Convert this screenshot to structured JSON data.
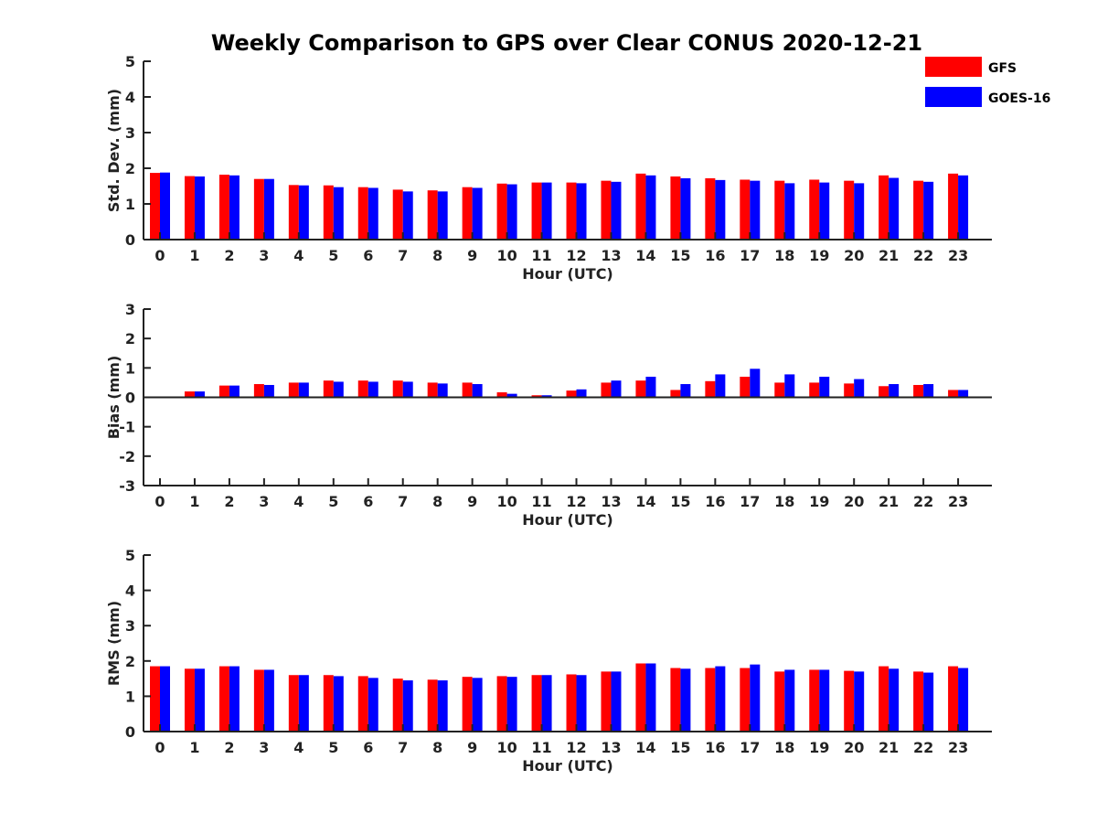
{
  "title": "Weekly Comparison to GPS over Clear CONUS 2020-12-21",
  "legend": [
    {
      "name": "GFS",
      "color": "#ff0000"
    },
    {
      "name": "GOES-16",
      "color": "#0000ff"
    }
  ],
  "chart_data": [
    {
      "type": "bar",
      "xlabel": "Hour (UTC)",
      "ylabel": "Std. Dev. (mm)",
      "ylim": [
        0,
        5
      ],
      "yticks": [
        0,
        1,
        2,
        3,
        4,
        5
      ],
      "categories": [
        "0",
        "1",
        "2",
        "3",
        "4",
        "5",
        "6",
        "7",
        "8",
        "9",
        "10",
        "11",
        "12",
        "13",
        "14",
        "15",
        "16",
        "17",
        "18",
        "19",
        "20",
        "21",
        "22",
        "23"
      ],
      "series": [
        {
          "name": "GFS",
          "color": "#ff0000",
          "values": [
            1.87,
            1.78,
            1.82,
            1.7,
            1.53,
            1.52,
            1.47,
            1.4,
            1.38,
            1.47,
            1.57,
            1.6,
            1.6,
            1.65,
            1.85,
            1.77,
            1.72,
            1.68,
            1.65,
            1.68,
            1.65,
            1.8,
            1.65,
            1.85
          ]
        },
        {
          "name": "GOES-16",
          "color": "#0000ff",
          "values": [
            1.88,
            1.77,
            1.8,
            1.7,
            1.52,
            1.47,
            1.45,
            1.35,
            1.35,
            1.45,
            1.55,
            1.6,
            1.58,
            1.62,
            1.8,
            1.72,
            1.67,
            1.65,
            1.58,
            1.6,
            1.58,
            1.73,
            1.62,
            1.8
          ]
        }
      ]
    },
    {
      "type": "bar",
      "xlabel": "Hour (UTC)",
      "ylabel": "Bias (mm)",
      "ylim": [
        -3,
        3
      ],
      "yticks": [
        -3,
        -2,
        -1,
        0,
        1,
        2,
        3
      ],
      "categories": [
        "0",
        "1",
        "2",
        "3",
        "4",
        "5",
        "6",
        "7",
        "8",
        "9",
        "10",
        "11",
        "12",
        "13",
        "14",
        "15",
        "16",
        "17",
        "18",
        "19",
        "20",
        "21",
        "22",
        "23"
      ],
      "series": [
        {
          "name": "GFS",
          "color": "#ff0000",
          "values": [
            0.0,
            0.2,
            0.4,
            0.45,
            0.5,
            0.57,
            0.57,
            0.57,
            0.5,
            0.5,
            0.17,
            0.07,
            0.23,
            0.5,
            0.57,
            0.25,
            0.55,
            0.7,
            0.5,
            0.5,
            0.47,
            0.38,
            0.42,
            0.25
          ]
        },
        {
          "name": "GOES-16",
          "color": "#0000ff",
          "values": [
            0.0,
            0.2,
            0.4,
            0.42,
            0.5,
            0.53,
            0.53,
            0.53,
            0.47,
            0.45,
            0.12,
            0.07,
            0.27,
            0.57,
            0.7,
            0.45,
            0.78,
            0.97,
            0.78,
            0.7,
            0.62,
            0.45,
            0.45,
            0.25
          ]
        }
      ]
    },
    {
      "type": "bar",
      "xlabel": "Hour (UTC)",
      "ylabel": "RMS (mm)",
      "ylim": [
        0,
        5
      ],
      "yticks": [
        0,
        1,
        2,
        3,
        4,
        5
      ],
      "categories": [
        "0",
        "1",
        "2",
        "3",
        "4",
        "5",
        "6",
        "7",
        "8",
        "9",
        "10",
        "11",
        "12",
        "13",
        "14",
        "15",
        "16",
        "17",
        "18",
        "19",
        "20",
        "21",
        "22",
        "23"
      ],
      "series": [
        {
          "name": "GFS",
          "color": "#ff0000",
          "values": [
            1.85,
            1.78,
            1.85,
            1.75,
            1.6,
            1.6,
            1.57,
            1.5,
            1.47,
            1.55,
            1.57,
            1.6,
            1.62,
            1.7,
            1.93,
            1.8,
            1.8,
            1.8,
            1.7,
            1.75,
            1.72,
            1.85,
            1.7,
            1.85
          ]
        },
        {
          "name": "GOES-16",
          "color": "#0000ff",
          "values": [
            1.85,
            1.78,
            1.85,
            1.75,
            1.6,
            1.57,
            1.52,
            1.45,
            1.45,
            1.52,
            1.55,
            1.6,
            1.6,
            1.7,
            1.93,
            1.78,
            1.85,
            1.9,
            1.75,
            1.75,
            1.7,
            1.78,
            1.67,
            1.8
          ]
        }
      ]
    }
  ]
}
